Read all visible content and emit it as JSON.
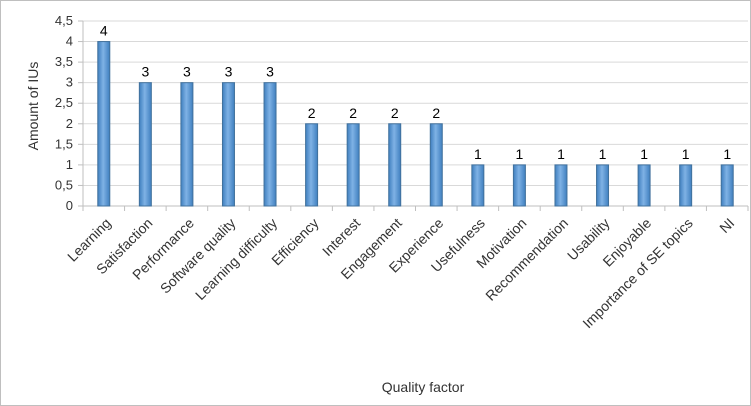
{
  "chart_data": {
    "type": "bar",
    "title": "",
    "xlabel": "Quality factor",
    "ylabel": "Amount of IUs",
    "categories": [
      "Learning",
      "Satisfaction",
      "Performance",
      "Software quality",
      "Learning difficulty",
      "Efficiency",
      "Interest",
      "Engagement",
      "Experience",
      "Usefulness",
      "Motivation",
      "Recommendation",
      "Usability",
      "Enjoyable",
      "Importance of SE topics",
      "NI"
    ],
    "values": [
      4,
      3,
      3,
      3,
      3,
      2,
      2,
      2,
      2,
      1,
      1,
      1,
      1,
      1,
      1,
      1
    ],
    "data_labels": [
      "4",
      "3",
      "3",
      "3",
      "3",
      "2",
      "2",
      "2",
      "2",
      "1",
      "1",
      "1",
      "1",
      "1",
      "1",
      "1"
    ],
    "y_ticks": [
      0,
      0.5,
      1,
      1.5,
      2,
      2.5,
      3,
      3.5,
      4,
      4.5
    ],
    "y_tick_labels": [
      "0",
      "0,5",
      "1",
      "1,5",
      "2",
      "2,5",
      "3",
      "3,5",
      "4",
      "4,5"
    ],
    "ylim": [
      0,
      4.5
    ],
    "grid": true,
    "legend": "none",
    "colors": {
      "bar_fill": "#5b9bd5",
      "bar_edge": "#41719c",
      "grid": "#d9d9d9",
      "axis": "#bfbfbf"
    }
  }
}
